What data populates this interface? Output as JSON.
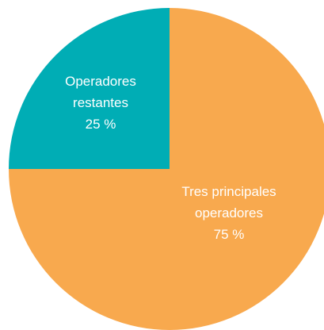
{
  "chart_data": {
    "type": "pie",
    "title": "",
    "slices": [
      {
        "label_lines": [
          "Tres principales",
          "operadores"
        ],
        "value_label": "75 %",
        "value": 75,
        "color": "#F8A94E"
      },
      {
        "label_lines": [
          "Operadores",
          "restantes"
        ],
        "value_label": "25 %",
        "value": 25,
        "color": "#00ADB5"
      }
    ],
    "start_angle": "12 o'clock",
    "direction": "clockwise",
    "legend": "none",
    "label_position": "inside",
    "label_color": "#FFFFFF"
  }
}
